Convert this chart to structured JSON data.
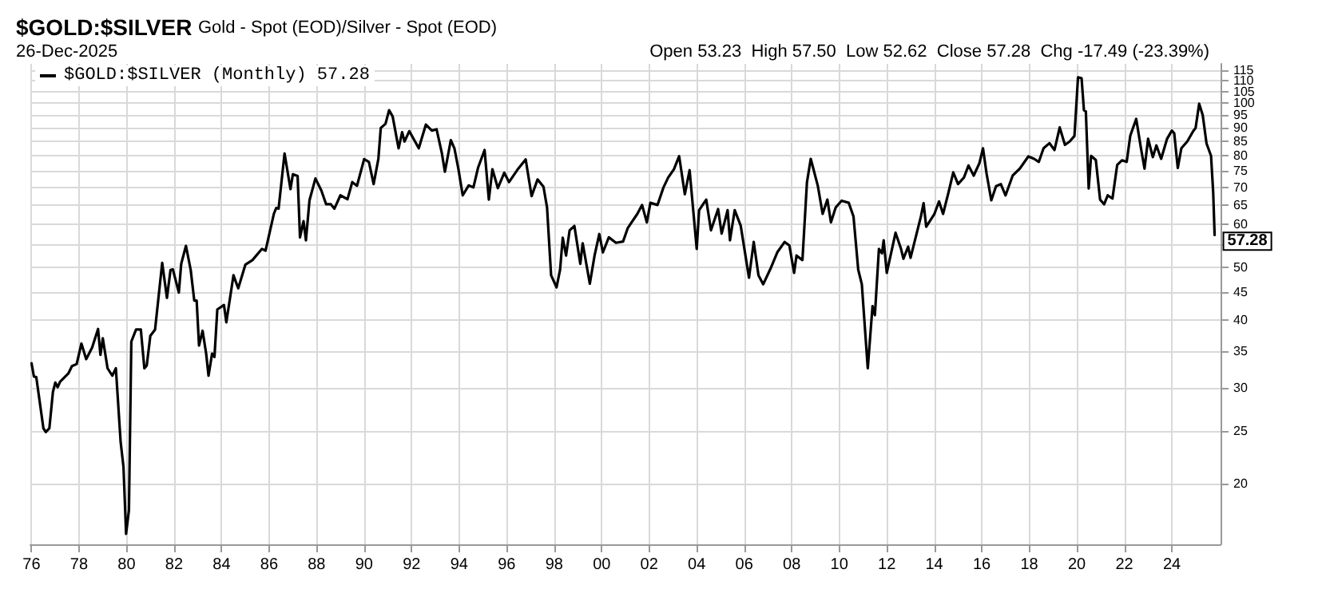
{
  "chart_data": {
    "type": "line",
    "title": "$GOLD:$SILVER",
    "subtitle": "Gold - Spot (EOD)/Silver - Spot (EOD)",
    "annotations": [
      "26-Dec-2025",
      "Open 53.23  High 57.50  Low 52.62  Close 57.28  Chg -17.49 (-23.39%)",
      {
        "text": "57.28",
        "x": 2025.8,
        "y": 57.28
      }
    ],
    "legend": "top left",
    "grid": true,
    "log": "y",
    "marker": "none",
    "line_style": "solid",
    "xlim": [
      1975.95,
      2026.05
    ],
    "xticks": [
      {
        "value": 1976,
        "label": "76"
      },
      {
        "value": 1978,
        "label": "78"
      },
      {
        "value": 1980,
        "label": "80"
      },
      {
        "value": 1982,
        "label": "82"
      },
      {
        "value": 1984,
        "label": "84"
      },
      {
        "value": 1986,
        "label": "86"
      },
      {
        "value": 1988,
        "label": "88"
      },
      {
        "value": 1990,
        "label": "90"
      },
      {
        "value": 1992,
        "label": "92"
      },
      {
        "value": 1994,
        "label": "94"
      },
      {
        "value": 1996,
        "label": "96"
      },
      {
        "value": 1998,
        "label": "98"
      },
      {
        "value": 2000,
        "label": "00"
      },
      {
        "value": 2002,
        "label": "02"
      },
      {
        "value": 2004,
        "label": "04"
      },
      {
        "value": 2006,
        "label": "06"
      },
      {
        "value": 2008,
        "label": "08"
      },
      {
        "value": 2010,
        "label": "10"
      },
      {
        "value": 2012,
        "label": "12"
      },
      {
        "value": 2014,
        "label": "14"
      },
      {
        "value": 2016,
        "label": "16"
      },
      {
        "value": 2018,
        "label": "18"
      },
      {
        "value": 2020,
        "label": "20"
      },
      {
        "value": 2022,
        "label": "22"
      },
      {
        "value": 2024,
        "label": "24"
      }
    ],
    "ylim": [
      15.5,
      118
    ],
    "yticks": [
      20,
      25,
      30,
      35,
      40,
      45,
      50,
      {
        "value": 55,
        "label": null
      },
      60,
      65,
      70,
      75,
      80,
      85,
      90,
      95,
      100,
      105,
      110,
      115
    ],
    "series": [
      {
        "name": "$GOLD:$SILVER (Monthly) 57.28",
        "color": "#000000",
        "x": [
          1976.0,
          1976.1,
          1976.2,
          1976.5,
          1976.6,
          1976.75,
          1976.9,
          1977.0,
          1977.1,
          1977.2,
          1977.55,
          1977.7,
          1977.9,
          1978.1,
          1978.3,
          1978.55,
          1978.8,
          1978.9,
          1979.0,
          1979.2,
          1979.4,
          1979.55,
          1979.75,
          1979.87,
          1979.98,
          1980.1,
          1980.2,
          1980.4,
          1980.6,
          1980.75,
          1980.85,
          1981.0,
          1981.2,
          1981.5,
          1981.7,
          1981.85,
          1981.95,
          1982.2,
          1982.3,
          1982.5,
          1982.7,
          1982.85,
          1982.95,
          1983.05,
          1983.2,
          1983.35,
          1983.45,
          1983.6,
          1983.7,
          1983.82,
          1984.1,
          1984.2,
          1984.5,
          1984.7,
          1985.0,
          1985.3,
          1985.7,
          1985.85,
          1986.2,
          1986.3,
          1986.4,
          1986.65,
          1986.9,
          1987.0,
          1987.2,
          1987.3,
          1987.45,
          1987.55,
          1987.7,
          1987.95,
          1988.2,
          1988.4,
          1988.6,
          1988.75,
          1989.0,
          1989.3,
          1989.5,
          1989.7,
          1990.0,
          1990.2,
          1990.4,
          1990.6,
          1990.7,
          1990.9,
          1991.05,
          1991.2,
          1991.45,
          1991.6,
          1991.7,
          1991.9,
          1992.3,
          1992.6,
          1992.85,
          1993.05,
          1993.27,
          1993.4,
          1993.65,
          1993.8,
          1993.97,
          1994.15,
          1994.4,
          1994.6,
          1994.8,
          1995.07,
          1995.25,
          1995.4,
          1995.63,
          1995.9,
          1996.1,
          1996.45,
          1996.8,
          1997.05,
          1997.3,
          1997.55,
          1997.7,
          1997.87,
          1998.1,
          1998.25,
          1998.36,
          1998.5,
          1998.65,
          1998.85,
          1999.1,
          1999.2,
          1999.5,
          1999.7,
          1999.9,
          2000.05,
          2000.3,
          2000.6,
          2000.9,
          2001.1,
          2001.5,
          2001.7,
          2001.9,
          2002.05,
          2002.35,
          2002.6,
          2002.8,
          2003.04,
          2003.26,
          2003.5,
          2003.7,
          2004.0,
          2004.1,
          2004.4,
          2004.6,
          2004.9,
          2005.05,
          2005.3,
          2005.4,
          2005.6,
          2005.85,
          2006.2,
          2006.4,
          2006.6,
          2006.8,
          2007.1,
          2007.4,
          2007.7,
          2007.9,
          2008.1,
          2008.2,
          2008.45,
          2008.64,
          2008.8,
          2009.1,
          2009.3,
          2009.5,
          2009.65,
          2009.85,
          2010.1,
          2010.4,
          2010.6,
          2010.8,
          2010.95,
          2011.2,
          2011.4,
          2011.5,
          2011.67,
          2011.8,
          2011.87,
          2012.0,
          2012.37,
          2012.6,
          2012.7,
          2012.9,
          2013.0,
          2013.44,
          2013.55,
          2013.66,
          2014.0,
          2014.2,
          2014.37,
          2014.6,
          2014.8,
          2015.0,
          2015.25,
          2015.44,
          2015.66,
          2015.9,
          2016.05,
          2016.2,
          2016.4,
          2016.6,
          2016.8,
          2017.0,
          2017.3,
          2017.6,
          2017.96,
          2018.2,
          2018.4,
          2018.6,
          2018.85,
          2019.06,
          2019.28,
          2019.5,
          2019.7,
          2019.9,
          2020.05,
          2020.2,
          2020.3,
          2020.38,
          2020.5,
          2020.6,
          2020.8,
          2020.98,
          2021.15,
          2021.3,
          2021.5,
          2021.7,
          2021.9,
          2022.1,
          2022.25,
          2022.5,
          2022.7,
          2022.85,
          2023.0,
          2023.2,
          2023.35,
          2023.55,
          2023.8,
          2024.0,
          2024.1,
          2024.25,
          2024.4,
          2024.65,
          2024.9,
          2025.0,
          2025.15,
          2025.3,
          2025.46,
          2025.65,
          2025.74,
          2025.8
        ],
        "values": [
          33.3,
          31.5,
          31.4,
          25.3,
          24.9,
          25.3,
          29.5,
          30.7,
          30.1,
          30.8,
          31.9,
          32.9,
          33.2,
          36.2,
          33.9,
          35.6,
          38.5,
          34.5,
          37.0,
          32.6,
          31.6,
          32.6,
          23.9,
          21.5,
          16.2,
          17.9,
          36.5,
          38.4,
          38.4,
          32.6,
          33,
          37.4,
          38.4,
          50.9,
          43.9,
          49.4,
          49.5,
          44.9,
          50.7,
          54.7,
          49.4,
          43.4,
          43.4,
          35.9,
          38.2,
          34.7,
          31.6,
          34.7,
          34.2,
          41.8,
          42.6,
          39.6,
          48.3,
          45.7,
          50.5,
          51.5,
          54,
          53.6,
          62.6,
          64.2,
          64,
          80.8,
          69.5,
          74,
          73.5,
          56.7,
          60.7,
          56,
          66.3,
          72.7,
          69.1,
          65.2,
          65.2,
          64,
          67.7,
          66.6,
          71.6,
          70.5,
          78.9,
          78,
          71,
          79,
          90,
          91.6,
          97,
          94.5,
          82.6,
          88.4,
          85,
          88.8,
          82.6,
          91.3,
          89,
          89.5,
          81,
          74.8,
          85.5,
          82.6,
          75.6,
          67.7,
          70.6,
          70,
          76.2,
          82,
          66.5,
          75.6,
          69.8,
          74.5,
          71.6,
          75.4,
          78.8,
          67.5,
          72.4,
          70.2,
          64.3,
          48.3,
          45.9,
          49.5,
          56.6,
          52.5,
          58.4,
          59.5,
          50.7,
          55.3,
          46.6,
          52.5,
          57.5,
          53.2,
          56.7,
          55.4,
          55.7,
          59,
          62.6,
          65,
          60.4,
          65.6,
          65,
          70,
          73,
          75.6,
          79.9,
          68,
          75.3,
          54,
          63.6,
          66.5,
          58.4,
          63.9,
          57.6,
          63.6,
          56,
          63.6,
          59.6,
          47.8,
          55.6,
          48.3,
          46.5,
          49.6,
          53.3,
          55.6,
          54.8,
          48.8,
          52.5,
          51.5,
          71.5,
          79,
          70.4,
          62.6,
          66.5,
          60.4,
          64.3,
          66.2,
          65.6,
          61.9,
          49.4,
          46.5,
          32.6,
          42.4,
          40.8,
          54,
          53,
          56,
          48.8,
          57.8,
          54,
          51.8,
          54.5,
          52,
          62,
          65.5,
          59.3,
          62.5,
          66,
          62.6,
          68.6,
          74.6,
          71,
          73,
          76.8,
          73.6,
          77.6,
          82.6,
          74.3,
          66.3,
          70.4,
          71,
          67.7,
          73.6,
          75.8,
          79.8,
          79,
          78,
          82.6,
          84.4,
          82,
          90.2,
          83.8,
          85,
          87,
          111.5,
          111,
          97,
          96.5,
          69.7,
          80,
          78.6,
          66.5,
          65.2,
          67.7,
          66.8,
          77,
          78.5,
          78,
          87.1,
          93.5,
          82.6,
          75.8,
          86,
          79.6,
          83.6,
          79,
          86,
          89,
          88,
          76,
          82.6,
          85,
          88.8,
          90,
          99.7,
          95,
          84.3,
          80,
          68.6,
          57.28
        ]
      }
    ]
  }
}
